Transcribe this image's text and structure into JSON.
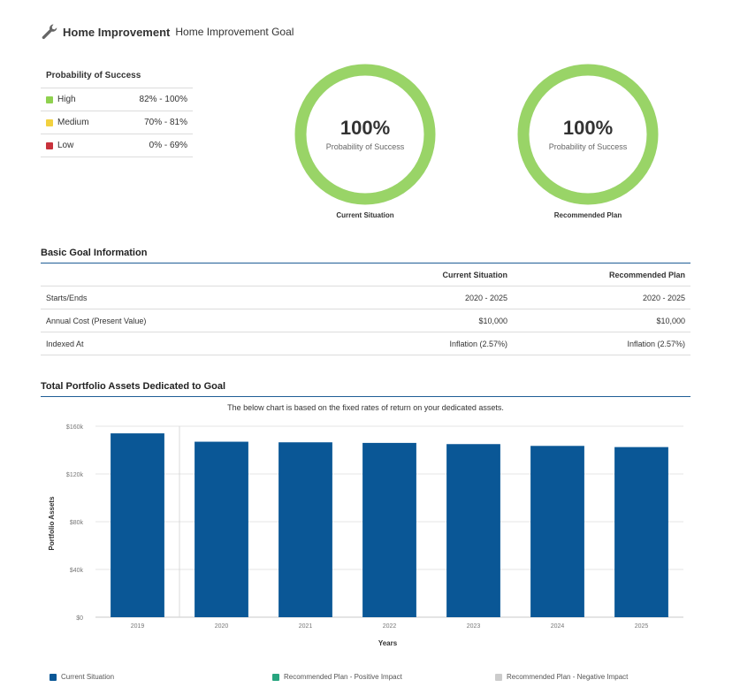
{
  "header": {
    "icon": "wrench-icon",
    "title": "Home Improvement",
    "subtitle": "Home Improvement Goal"
  },
  "probability_legend": {
    "title": "Probability of Success",
    "rows": [
      {
        "label": "High",
        "range": "82% - 100%",
        "color": "#8fd14f"
      },
      {
        "label": "Medium",
        "range": "70% - 81%",
        "color": "#f2d13f"
      },
      {
        "label": "Low",
        "range": "0% - 69%",
        "color": "#c8323c"
      }
    ]
  },
  "donuts": [
    {
      "percent": "100%",
      "label": "Probability of Success",
      "caption": "Current Situation",
      "value": 1.0,
      "color": "#99d467"
    },
    {
      "percent": "100%",
      "label": "Probability of Success",
      "caption": "Recommended Plan",
      "value": 1.0,
      "color": "#99d467"
    }
  ],
  "basic_goal": {
    "title": "Basic Goal Information",
    "columns": [
      "",
      "Current Situation",
      "Recommended Plan"
    ],
    "rows": [
      {
        "label": "Starts/Ends",
        "current": "2020 - 2025",
        "recommended": "2020 - 2025"
      },
      {
        "label": "Annual Cost (Present Value)",
        "current": "$10,000",
        "recommended": "$10,000"
      },
      {
        "label": "Indexed At",
        "current": "Inflation (2.57%)",
        "recommended": "Inflation (2.57%)"
      }
    ]
  },
  "portfolio": {
    "title": "Total Portfolio Assets Dedicated to Goal",
    "note": "The below chart is based on the fixed rates of return on your dedicated assets."
  },
  "chart_data": {
    "type": "bar",
    "categories": [
      "2019",
      "2020",
      "2021",
      "2022",
      "2023",
      "2024",
      "2025"
    ],
    "series": [
      {
        "name": "Current Situation",
        "values": [
          154000,
          147000,
          146500,
          146000,
          145000,
          143500,
          142500
        ],
        "color": "#0a5796"
      }
    ],
    "xlabel": "Years",
    "ylabel": "Portfolio Assets",
    "ylim": [
      0,
      160000
    ],
    "yticks": [
      0,
      40000,
      80000,
      120000,
      160000
    ],
    "ytick_labels": [
      "$0",
      "$40k",
      "$80k",
      "$120k",
      "$160k"
    ],
    "grid": true
  },
  "legend": [
    {
      "label": "Current Situation",
      "color": "#0a5796"
    },
    {
      "label": "Recommended Plan - Positive Impact",
      "color": "#27a57f"
    },
    {
      "label": "Recommended Plan - Negative Impact",
      "color": "#cccccc"
    }
  ]
}
